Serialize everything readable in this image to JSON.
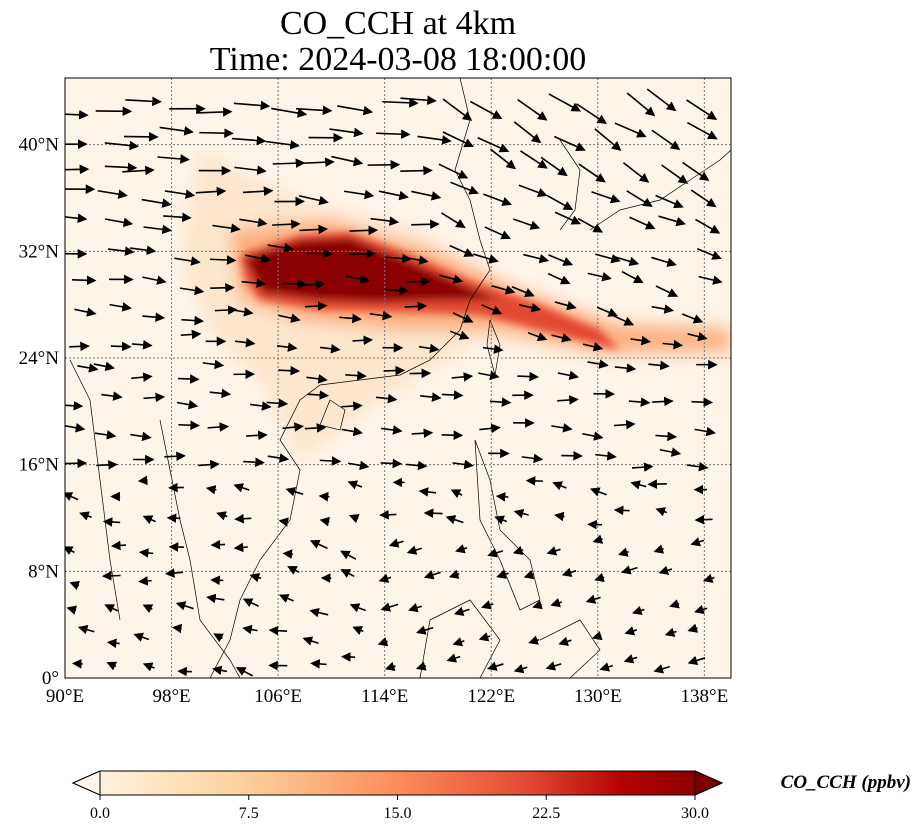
{
  "title_line1": "CO_CCH at 4km",
  "title_line2": "Time: 2024-03-08 18:00:00",
  "chart_data": {
    "type": "heatmap",
    "variable": "CO_CCH",
    "units": "ppbv",
    "lon_range": [
      90,
      140
    ],
    "lat_range": [
      0,
      45
    ],
    "x_ticks": [
      90,
      98,
      106,
      114,
      122,
      130,
      138
    ],
    "x_tick_labels": [
      "90°E",
      "98°E",
      "106°E",
      "114°E",
      "122°E",
      "130°E",
      "138°E"
    ],
    "y_ticks": [
      0,
      8,
      16,
      24,
      32,
      40
    ],
    "y_tick_labels": [
      "0°",
      "8°N",
      "16°N",
      "24°N",
      "32°N",
      "40°N"
    ],
    "grid": true,
    "colormap": "OrRd",
    "colorbar": {
      "range": [
        0,
        30
      ],
      "ticks": [
        "0.0",
        "7.5",
        "15.0",
        "22.5",
        "30.0"
      ],
      "label": "CO_CCH (ppbv)",
      "extend": "both",
      "colors": [
        "#fff7ec",
        "#fdd49e",
        "#fc8d59",
        "#d7301f",
        "#b30000",
        "#7f0000"
      ]
    },
    "plume": {
      "max_value": 30,
      "core_lon": [
        103,
        122
      ],
      "core_lat": [
        27,
        32
      ],
      "tail_to_lon": 140,
      "tail_lat": 25
    },
    "wind_vectors": "westerly flow, stronger north of 24°N"
  }
}
